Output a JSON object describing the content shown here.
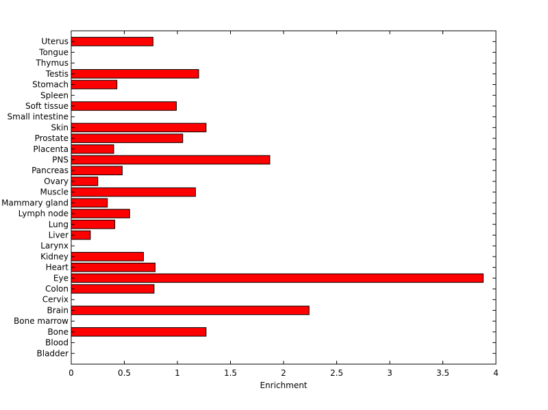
{
  "chart_data": {
    "type": "bar",
    "orientation": "horizontal",
    "categories": [
      "Bladder",
      "Blood",
      "Bone",
      "Bone marrow",
      "Brain",
      "Cervix",
      "Colon",
      "Eye",
      "Heart",
      "Kidney",
      "Larynx",
      "Liver",
      "Lung",
      "Lymph node",
      "Mammary gland",
      "Muscle",
      "Ovary",
      "Pancreas",
      "PNS",
      "Placenta",
      "Prostate",
      "Skin",
      "Small intestine",
      "Soft tissue",
      "Spleen",
      "Stomach",
      "Testis",
      "Thymus",
      "Tongue",
      "Uterus"
    ],
    "values": [
      0,
      0,
      1.27,
      0,
      2.24,
      0,
      0.78,
      3.88,
      0.79,
      0.68,
      0,
      0.18,
      0.41,
      0.55,
      0.34,
      1.17,
      0.25,
      0.48,
      1.87,
      0.4,
      1.05,
      1.27,
      0,
      0.99,
      0,
      0.43,
      1.2,
      0,
      0,
      0.77
    ],
    "xlabel": "Enrichment",
    "ylabel": "",
    "title": "",
    "xlim": [
      0,
      4
    ],
    "xticks": [
      "0",
      "0.5",
      "1",
      "1.5",
      "2",
      "2.5",
      "3",
      "3.5",
      "4"
    ],
    "bar_color": "#ff0000",
    "edge_color": "#000000",
    "grid": false
  }
}
